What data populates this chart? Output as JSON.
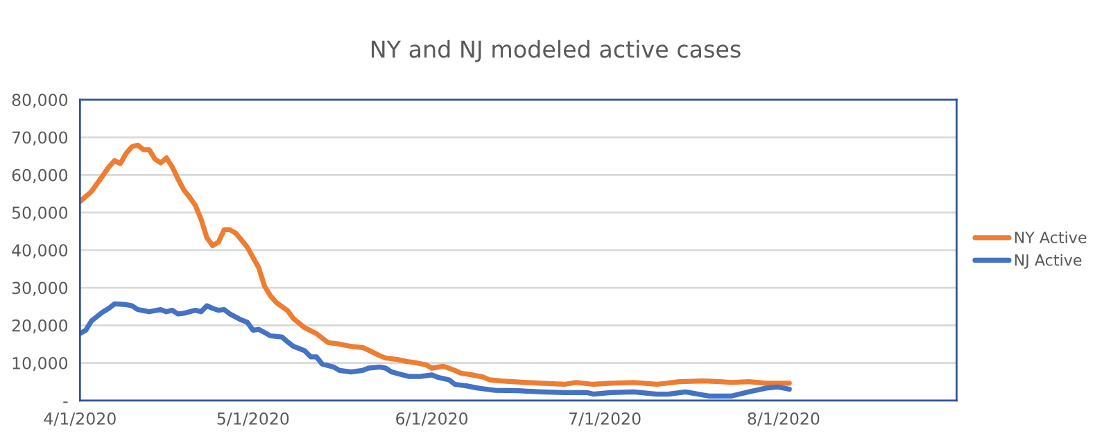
{
  "chart_data": {
    "type": "line",
    "title": "NY and NJ modeled active cases",
    "xlim": [
      "2020-04-01",
      "2020-08-31"
    ],
    "xticks": [
      {
        "value": "2020-04-01",
        "label": "4/1/2020"
      },
      {
        "value": "2020-05-01",
        "label": "5/1/2020"
      },
      {
        "value": "2020-06-01",
        "label": "6/1/2020"
      },
      {
        "value": "2020-07-01",
        "label": "7/1/2020"
      },
      {
        "value": "2020-08-01",
        "label": "8/1/2020"
      }
    ],
    "ylim": [
      0,
      80000
    ],
    "yticks": [
      {
        "value": 0,
        "label": "-"
      },
      {
        "value": 10000,
        "label": "10,000"
      },
      {
        "value": 20000,
        "label": "20,000"
      },
      {
        "value": 30000,
        "label": "30,000"
      },
      {
        "value": 40000,
        "label": "40,000"
      },
      {
        "value": 50000,
        "label": "50,000"
      },
      {
        "value": 60000,
        "label": "60,000"
      },
      {
        "value": 70000,
        "label": "70,000"
      },
      {
        "value": 80000,
        "label": "80,000"
      }
    ],
    "grid": "y",
    "legend": "right",
    "marker": "none",
    "line_style": "solid",
    "series": [
      {
        "name": "NY Active",
        "color": "#ed7d31",
        "x": [
          "2020-04-01",
          "2020-04-03",
          "2020-04-05",
          "2020-04-06",
          "2020-04-07",
          "2020-04-08",
          "2020-04-09",
          "2020-04-10",
          "2020-04-11",
          "2020-04-12",
          "2020-04-13",
          "2020-04-14",
          "2020-04-15",
          "2020-04-16",
          "2020-04-17",
          "2020-04-18",
          "2020-04-19",
          "2020-04-20",
          "2020-04-21",
          "2020-04-22",
          "2020-04-23",
          "2020-04-24",
          "2020-04-25",
          "2020-04-26",
          "2020-04-27",
          "2020-04-28",
          "2020-04-29",
          "2020-04-30",
          "2020-05-02",
          "2020-05-03",
          "2020-05-04",
          "2020-05-05",
          "2020-05-07",
          "2020-05-08",
          "2020-05-10",
          "2020-05-12",
          "2020-05-13",
          "2020-05-14",
          "2020-05-16",
          "2020-05-18",
          "2020-05-20",
          "2020-05-21",
          "2020-05-23",
          "2020-05-24",
          "2020-05-26",
          "2020-05-28",
          "2020-05-29",
          "2020-05-31",
          "2020-06-01",
          "2020-06-03",
          "2020-06-05",
          "2020-06-06",
          "2020-06-08",
          "2020-06-10",
          "2020-06-11",
          "2020-06-13",
          "2020-06-16",
          "2020-06-20",
          "2020-06-24",
          "2020-06-26",
          "2020-06-29",
          "2020-07-02",
          "2020-07-06",
          "2020-07-10",
          "2020-07-14",
          "2020-07-18",
          "2020-07-21",
          "2020-07-23",
          "2020-07-26",
          "2020-07-29",
          "2020-08-02"
        ],
        "values": [
          52900,
          55600,
          59900,
          62100,
          63800,
          63000,
          65700,
          67500,
          67900,
          66700,
          66700,
          64200,
          63200,
          64500,
          62100,
          58900,
          56000,
          54100,
          51900,
          48200,
          43300,
          41200,
          42100,
          45400,
          45400,
          44500,
          42700,
          40800,
          35300,
          30400,
          27900,
          26100,
          23900,
          21800,
          19300,
          17800,
          16600,
          15400,
          15000,
          14400,
          14100,
          13400,
          11900,
          11300,
          10900,
          10300,
          10100,
          9500,
          8600,
          9100,
          8000,
          7300,
          6800,
          6200,
          5500,
          5200,
          4900,
          4600,
          4300,
          4800,
          4300,
          4600,
          4800,
          4300,
          5000,
          5200,
          5000,
          4800,
          5000,
          4600,
          4600
        ]
      },
      {
        "name": "NJ Active",
        "color": "#4472c4",
        "x": [
          "2020-04-01",
          "2020-04-02",
          "2020-04-03",
          "2020-04-05",
          "2020-04-06",
          "2020-04-07",
          "2020-04-09",
          "2020-04-10",
          "2020-04-11",
          "2020-04-12",
          "2020-04-13",
          "2020-04-15",
          "2020-04-16",
          "2020-04-17",
          "2020-04-18",
          "2020-04-19",
          "2020-04-21",
          "2020-04-22",
          "2020-04-23",
          "2020-04-24",
          "2020-04-25",
          "2020-04-26",
          "2020-04-27",
          "2020-04-29",
          "2020-04-30",
          "2020-05-01",
          "2020-05-02",
          "2020-05-03",
          "2020-05-04",
          "2020-05-06",
          "2020-05-07",
          "2020-05-08",
          "2020-05-10",
          "2020-05-11",
          "2020-05-12",
          "2020-05-13",
          "2020-05-15",
          "2020-05-16",
          "2020-05-18",
          "2020-05-20",
          "2020-05-21",
          "2020-05-23",
          "2020-05-24",
          "2020-05-25",
          "2020-05-27",
          "2020-05-28",
          "2020-05-30",
          "2020-06-01",
          "2020-06-02",
          "2020-06-04",
          "2020-06-05",
          "2020-06-07",
          "2020-06-09",
          "2020-06-10",
          "2020-06-12",
          "2020-06-16",
          "2020-06-20",
          "2020-06-24",
          "2020-06-28",
          "2020-06-29",
          "2020-07-02",
          "2020-07-06",
          "2020-07-10",
          "2020-07-12",
          "2020-07-15",
          "2020-07-19",
          "2020-07-23",
          "2020-07-26",
          "2020-07-29",
          "2020-07-31",
          "2020-08-02"
        ],
        "values": [
          17800,
          18700,
          21200,
          23600,
          24500,
          25700,
          25500,
          25200,
          24200,
          23900,
          23600,
          24200,
          23600,
          24000,
          23000,
          23200,
          24000,
          23600,
          25200,
          24500,
          24000,
          24200,
          23000,
          21400,
          20800,
          18700,
          18900,
          18100,
          17200,
          16900,
          15600,
          14400,
          13200,
          11600,
          11600,
          9700,
          8900,
          8000,
          7600,
          8000,
          8600,
          8900,
          8600,
          7600,
          6800,
          6400,
          6400,
          6800,
          6200,
          5500,
          4300,
          3900,
          3300,
          3100,
          2700,
          2600,
          2300,
          2100,
          2100,
          1700,
          2100,
          2300,
          1700,
          1700,
          2300,
          1200,
          1200,
          2300,
          3300,
          3600,
          3000
        ]
      }
    ]
  }
}
